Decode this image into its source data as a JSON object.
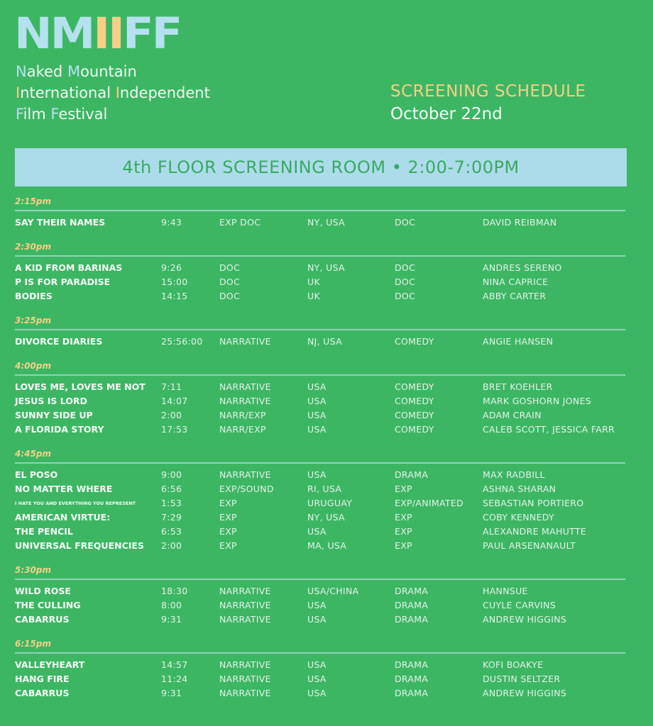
{
  "logo": {
    "letters": [
      "N",
      "M",
      "I",
      "I",
      "F",
      "F"
    ],
    "text": "NMIIFF"
  },
  "festival_name": [
    [
      {
        "t": "N",
        "c": "b"
      },
      {
        "t": "aked ",
        "c": ""
      },
      {
        "t": "M",
        "c": "b"
      },
      {
        "t": "ountain",
        "c": ""
      }
    ],
    [
      {
        "t": "I",
        "c": "y"
      },
      {
        "t": "nternational ",
        "c": ""
      },
      {
        "t": "I",
        "c": "y"
      },
      {
        "t": "ndependent",
        "c": ""
      }
    ],
    [
      {
        "t": "F",
        "c": "b"
      },
      {
        "t": "ilm ",
        "c": ""
      },
      {
        "t": "F",
        "c": "b"
      },
      {
        "t": "estival",
        "c": ""
      }
    ]
  ],
  "header": {
    "title": "SCREENING SCHEDULE",
    "date": "October 22nd"
  },
  "banner": "4th FLOOR SCREENING ROOM • 2:00-7:00PM",
  "colors": {
    "background": "#3db664",
    "light_blue": "#b5e1ee",
    "yellow": "#f6cf86"
  },
  "sections": [
    {
      "time": "2:15pm",
      "rows": [
        [
          "SAY THEIR NAMES",
          "9:43",
          "EXP DOC",
          "NY, USA",
          "DOC",
          "DAVID REIBMAN"
        ]
      ]
    },
    {
      "time": "2:30pm",
      "rows": [
        [
          "A KID FROM BARINAS",
          "9:26",
          "DOC",
          "NY, USA",
          "DOC",
          "ANDRES SERENO"
        ],
        [
          "P IS FOR PARADISE",
          "15:00",
          "DOC",
          "UK",
          "DOC",
          "NINA CAPRICE"
        ],
        [
          "BODIES",
          "14:15",
          "DOC",
          "UK",
          "DOC",
          "ABBY CARTER"
        ]
      ]
    },
    {
      "time": "3:25pm",
      "rows": [
        [
          "DIVORCE DIARIES",
          "25:56:00",
          "NARRATIVE",
          "NJ, USA",
          "COMEDY",
          "ANGIE HANSEN"
        ]
      ]
    },
    {
      "time": "4:00pm",
      "rows": [
        [
          "LOVES ME, LOVES ME NOT",
          "7:11",
          "NARRATIVE",
          "USA",
          "COMEDY",
          "BRET KOEHLER"
        ],
        [
          "JESUS IS LORD",
          "14:07",
          "NARRATIVE",
          "USA",
          "COMEDY",
          "MARK GOSHORN JONES"
        ],
        [
          "SUNNY SIDE UP",
          "2:00",
          "NARR/EXP",
          "USA",
          "COMEDY",
          "ADAM CRAIN"
        ],
        [
          "A FLORIDA STORY",
          "17:53",
          "NARR/EXP",
          "USA",
          "COMEDY",
          "CALEB SCOTT, JESSICA FARR"
        ]
      ]
    },
    {
      "time": "4:45pm",
      "rows": [
        [
          "EL POSO",
          "9:00",
          "NARRATIVE",
          "USA",
          "DRAMA",
          "MAX RADBILL"
        ],
        [
          "NO MATTER WHERE",
          "6:56",
          "EXP/SOUND",
          "RI, USA",
          "EXP",
          "ASHNA SHARAN"
        ],
        [
          "I HATE YOU AND EVERYTHING YOU REPRESENT",
          "1:53",
          "EXP",
          "URUGUAY",
          "EXP/ANIMATED",
          "SEBASTIAN PORTIERO"
        ],
        [
          "AMERICAN VIRTUE:",
          "7:29",
          "EXP",
          "NY, USA",
          "EXP",
          "COBY KENNEDY"
        ],
        [
          "THE PENCIL",
          "6:53",
          "EXP",
          "USA",
          "EXP",
          "ALEXANDRE MAHUTTE"
        ],
        [
          "UNIVERSAL FREQUENCIES",
          "2:00",
          "EXP",
          "MA, USA",
          "EXP",
          "PAUL ARSENANAULT"
        ]
      ]
    },
    {
      "time": "5:30pm",
      "rows": [
        [
          "WILD ROSE",
          "18:30",
          "NARRATIVE",
          "USA/CHINA",
          "DRAMA",
          "HANNSUE"
        ],
        [
          "THE CULLING",
          "8:00",
          "NARRATIVE",
          "USA",
          "DRAMA",
          "CUYLE CARVINS"
        ],
        [
          "CABARRUS",
          "9:31",
          "NARRATIVE",
          "USA",
          "DRAMA",
          "ANDREW HIGGINS"
        ]
      ]
    },
    {
      "time": "6:15pm",
      "rows": [
        [
          "VALLEYHEART",
          "14:57",
          "NARRATIVE",
          "USA",
          "DRAMA",
          "KOFI BOAKYE"
        ],
        [
          "HANG FIRE",
          "11:24",
          "NARRATIVE",
          "USA",
          "DRAMA",
          "DUSTIN SELTZER"
        ],
        [
          "CABARRUS",
          "9:31",
          "NARRATIVE",
          "USA",
          "DRAMA",
          "ANDREW HIGGINS"
        ]
      ]
    }
  ]
}
